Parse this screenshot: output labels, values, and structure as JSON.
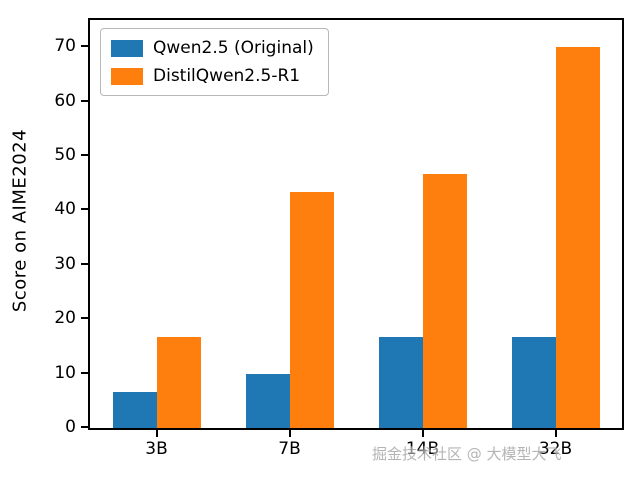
{
  "watermark": "掘金技术社区 @ 大模型大飞",
  "chart_data": {
    "type": "bar",
    "title": "",
    "xlabel": "",
    "ylabel": "Score on AIME2024",
    "categories": [
      "3B",
      "7B",
      "14B",
      "32B"
    ],
    "series": [
      {
        "name": "Qwen2.5 (Original)",
        "color": "#1f77b4",
        "values": [
          6.7,
          10,
          16.7,
          16.7
        ]
      },
      {
        "name": "DistilQwen2.5-R1",
        "color": "#ff7f0e",
        "values": [
          16.7,
          43.3,
          46.7,
          70
        ]
      }
    ],
    "yticks": [
      0,
      10,
      20,
      30,
      40,
      50,
      60,
      70
    ],
    "ylim": [
      0,
      75
    ],
    "legend_position": "upper left",
    "grid": false
  }
}
